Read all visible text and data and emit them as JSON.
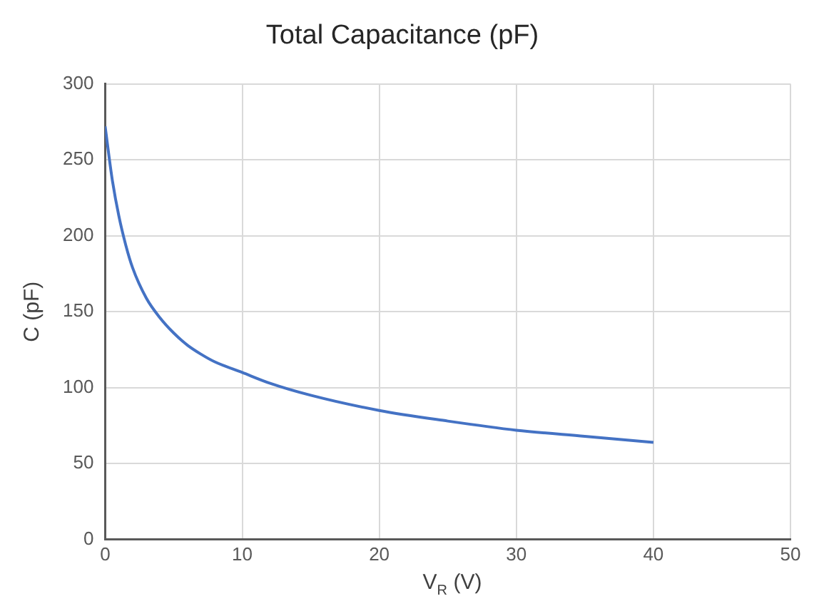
{
  "chart_data": {
    "type": "line",
    "title": "Total Capacitance (pF)",
    "xlabel": "V$_{R}$ (V)",
    "ylabel": "C (pF)",
    "x": [
      0,
      0.5,
      1,
      1.5,
      2,
      3,
      4,
      5,
      6,
      7,
      8,
      10,
      12,
      15,
      20,
      25,
      30,
      35,
      40
    ],
    "series": [
      {
        "color": "#4472c4",
        "values": [
          272,
          238,
          213,
          194,
          179,
          159,
          146,
          136,
          128,
          122,
          117,
          110,
          103,
          95,
          85,
          78,
          72,
          68,
          64
        ]
      }
    ],
    "xlim": [
      0,
      50
    ],
    "xticks": [
      0,
      10,
      20,
      30,
      40,
      50
    ],
    "ylim": [
      0,
      300
    ],
    "yticks": [
      0,
      50,
      100,
      150,
      200,
      250,
      300
    ],
    "grid": true,
    "legend": false,
    "marker": "none",
    "line_style": "solid"
  }
}
